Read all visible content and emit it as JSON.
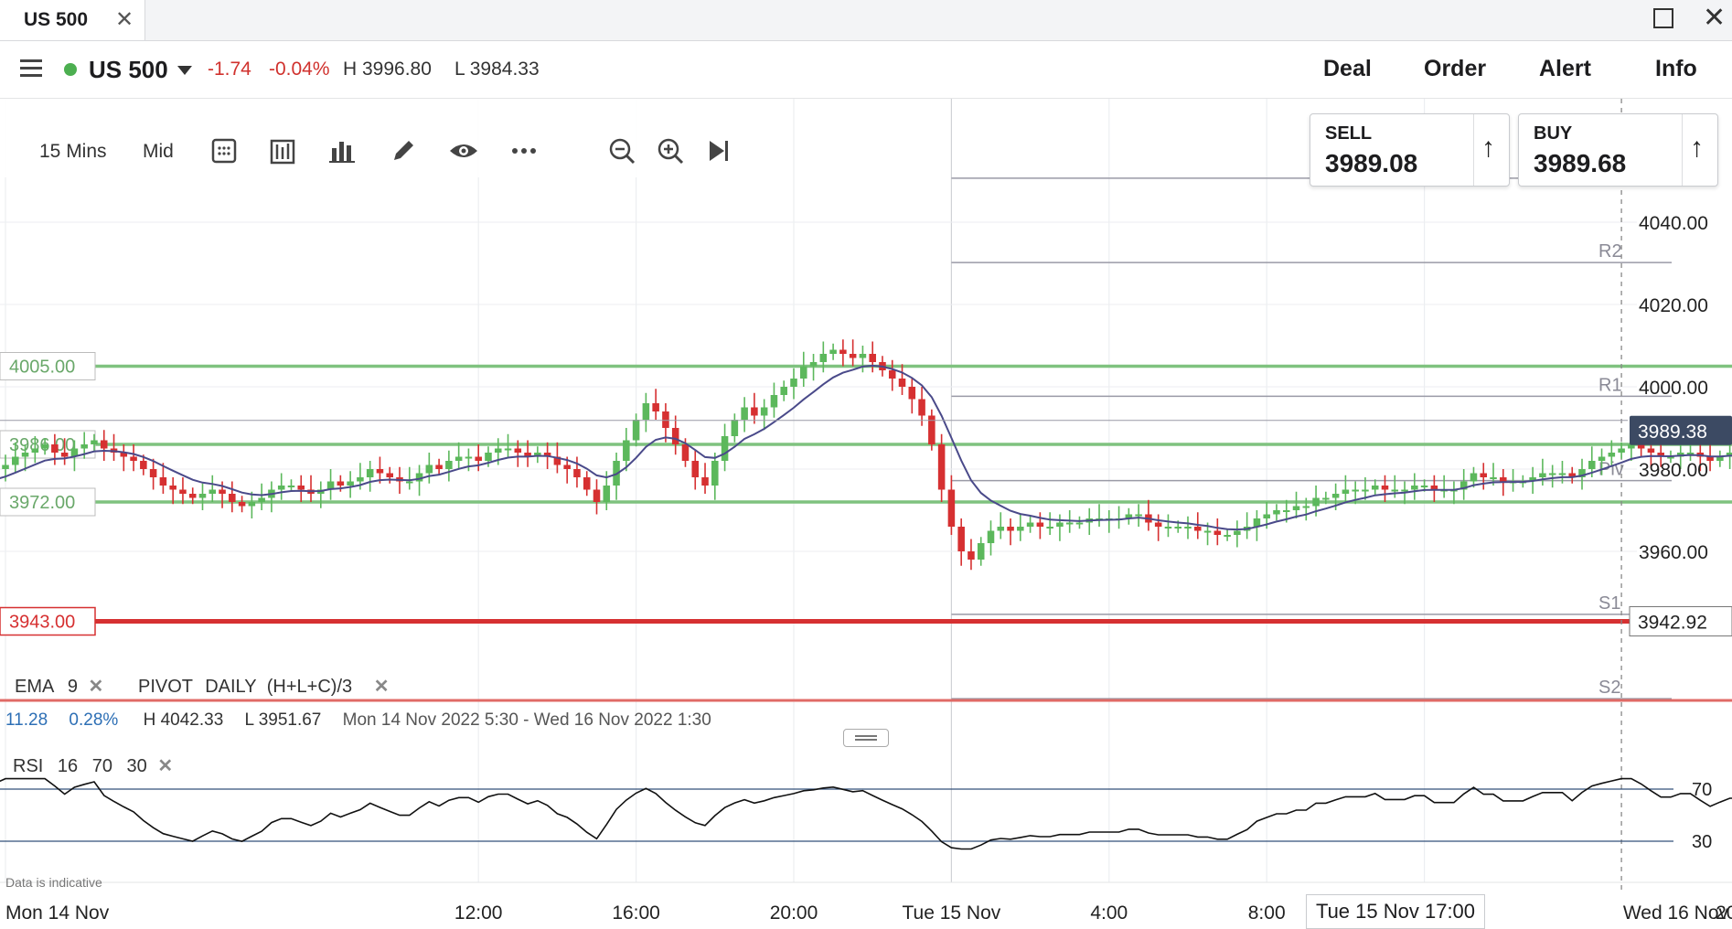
{
  "tab": {
    "title": "US 500",
    "close_icon": "close-icon"
  },
  "window": {
    "maximize_icon": "maximize-icon",
    "close_icon": "close-icon"
  },
  "header": {
    "instrument": "US 500",
    "change": "-1.74",
    "change_pct": "-0.04%",
    "high": "H 3996.80",
    "low": "L 3984.33",
    "nav": [
      "Deal",
      "Order",
      "Alert",
      "Info"
    ]
  },
  "toolbar": {
    "interval": "15 Mins",
    "price_type": "Mid"
  },
  "sell": {
    "label": "SELL",
    "value": "3989.08"
  },
  "buy": {
    "label": "BUY",
    "value": "3989.68"
  },
  "legend": {
    "ema": {
      "name": "EMA",
      "period": "9"
    },
    "pivot": {
      "name": "PIVOT",
      "timeframe": "DAILY",
      "formula": "(H+L+C)/3"
    },
    "stats": {
      "change": "11.28",
      "change_pct": "0.28%",
      "high": "H 4042.33",
      "low": "L 3951.67",
      "range": "Mon 14 Nov 2022 5:30 - Wed 16 Nov 2022 1:30"
    },
    "rsi": {
      "name": "RSI",
      "period": "16",
      "upper": "70",
      "lower": "30"
    }
  },
  "disclaimer": "Data is indicative",
  "crosshair_label": "Tue 15 Nov 17:00",
  "colors": {
    "up": "#5cb85c",
    "down": "#d63031",
    "ema": "#4a4a8a",
    "support": "#7fc27f",
    "alert": "#d63031",
    "pivot": "#9a9aa6"
  },
  "chart_data": {
    "type": "candlestick",
    "ylim": [
      3934,
      4070
    ],
    "y_ticks": [
      "4040.00",
      "4020.00",
      "4000.00",
      "3980.00",
      "3960.00"
    ],
    "y_tick_values": [
      4040,
      4020,
      4000,
      3980,
      3960
    ],
    "x_ticks": [
      "Mon 14 Nov",
      "12:00",
      "16:00",
      "20:00",
      "Tue 15 Nov",
      "4:00",
      "8:00",
      "12:00",
      "20:00",
      "Wed 16 Nov"
    ],
    "x_tick_hours": [
      0,
      12,
      16,
      20,
      24,
      28,
      32,
      36,
      44,
      48
    ],
    "current_price": "3989.38",
    "current_value": 3989.38,
    "crosshair_hour": 41,
    "support_lines": [
      {
        "label": "4005.00",
        "value": 4005
      },
      {
        "label": "3986.00",
        "value": 3986
      },
      {
        "label": "3972.00",
        "value": 3972
      }
    ],
    "alert_line": {
      "label": "3943.00",
      "value": 3943,
      "right_label": "3942.92"
    },
    "pivots": [
      {
        "label": "R3",
        "value": 4050.7
      },
      {
        "label": "R2",
        "value": 4030.2
      },
      {
        "label": "R1",
        "value": 3997.7
      },
      {
        "label": "Piv",
        "value": 3977.2
      },
      {
        "label": "S1",
        "value": 3944.7
      },
      {
        "label": "S2",
        "value": 3924.2
      }
    ],
    "series_start_hour": -1.5,
    "interval_hours": 0.25,
    "closes": [
      3977,
      3976,
      3975,
      3977,
      3978,
      3980,
      3981,
      3983,
      3984,
      3985,
      3986,
      3984,
      3983,
      3985,
      3986,
      3987,
      3985,
      3984,
      3983,
      3982,
      3980,
      3978,
      3976,
      3975,
      3974,
      3973,
      3974,
      3975,
      3974,
      3972,
      3971,
      3972,
      3973,
      3975,
      3976,
      3976,
      3975,
      3974,
      3975,
      3977,
      3976,
      3977,
      3978,
      3980,
      3979,
      3978,
      3977,
      3977,
      3979,
      3981,
      3980,
      3982,
      3983,
      3983,
      3982,
      3984,
      3985,
      3985,
      3984,
      3983,
      3984,
      3983,
      3981,
      3980,
      3978,
      3975,
      3972,
      3976,
      3982,
      3987,
      3992,
      3996,
      3994,
      3990,
      3986,
      3982,
      3978,
      3976,
      3982,
      3988,
      3992,
      3995,
      3993,
      3995,
      3998,
      4000,
      4002,
      4005,
      4006,
      4008,
      4009,
      4008,
      4007,
      4008,
      4006,
      4004,
      4002,
      4000,
      3997,
      3993,
      3986,
      3975,
      3966,
      3960,
      3958,
      3962,
      3965,
      3966,
      3965,
      3966,
      3967,
      3966,
      3966,
      3967,
      3967,
      3967,
      3968,
      3968,
      3968,
      3968,
      3969,
      3969,
      3967,
      3966,
      3966,
      3966,
      3966,
      3965,
      3965,
      3964,
      3964,
      3965,
      3966,
      3968,
      3969,
      3970,
      3970,
      3971,
      3971,
      3973,
      3973,
      3974,
      3975,
      3975,
      3975,
      3976,
      3975,
      3975,
      3975,
      3976,
      3976,
      3975,
      3975,
      3975,
      3977,
      3979,
      3978,
      3978,
      3977,
      3977,
      3977,
      3978,
      3979,
      3979,
      3979,
      3978,
      3980,
      3982,
      3983,
      3984,
      3985,
      3986,
      3985,
      3984,
      3983,
      3983,
      3984,
      3984,
      3983,
      3982,
      3983,
      3984,
      3984,
      3983,
      3983,
      3984,
      3985,
      3986,
      3988,
      3988,
      3987,
      3987,
      3988,
      3988,
      3988,
      3988,
      3986,
      3985,
      3984,
      3986,
      3988,
      3992,
      3996,
      3998,
      4000,
      4002,
      4004,
      4030,
      4034,
      4032,
      4026,
      4022,
      4017,
      4016,
      4017,
      4020,
      4022,
      4018,
      4020,
      4016,
      4012,
      4008,
      4006,
      4004,
      4008,
      4012,
      4016,
      4018,
      4014,
      4010,
      4008,
      4006,
      4004,
      4004,
      3996,
      3990,
      3968,
      3970,
      3972,
      3975,
      3980,
      3982,
      3984,
      3988,
      3990,
      3992,
      3994,
      3996,
      3993,
      3994,
      3993,
      3990,
      3988,
      3990,
      3990,
      3989
    ]
  }
}
